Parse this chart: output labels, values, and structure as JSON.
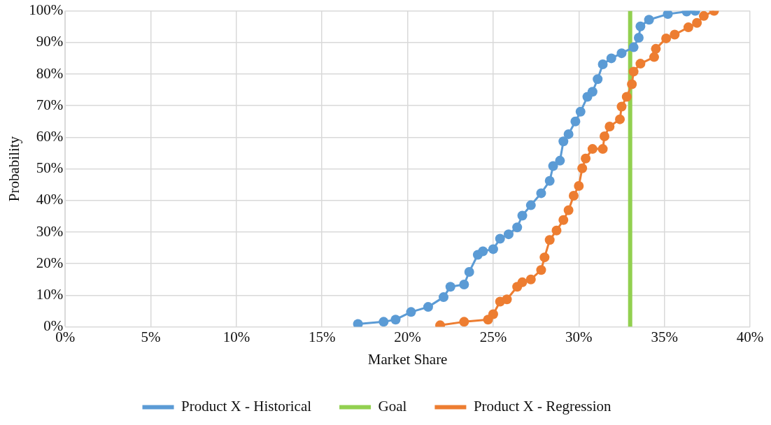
{
  "chart_data": {
    "type": "line",
    "xlabel": "Market Share",
    "ylabel": "Probability",
    "xlim": [
      0,
      40
    ],
    "xticks": [
      {
        "value": 0,
        "label": "0%"
      },
      {
        "value": 5,
        "label": "5%"
      },
      {
        "value": 10,
        "label": "10%"
      },
      {
        "value": 15,
        "label": "15%"
      },
      {
        "value": 20,
        "label": "20%"
      },
      {
        "value": 25,
        "label": "25%"
      },
      {
        "value": 30,
        "label": "30%"
      },
      {
        "value": 35,
        "label": "35%"
      },
      {
        "value": 40,
        "label": "40%"
      }
    ],
    "ylim": [
      0,
      100
    ],
    "yticks": [
      {
        "value": 0,
        "label": "0%"
      },
      {
        "value": 10,
        "label": "10%"
      },
      {
        "value": 20,
        "label": "20%"
      },
      {
        "value": 30,
        "label": "30%"
      },
      {
        "value": 40,
        "label": "40%"
      },
      {
        "value": 50,
        "label": "50%"
      },
      {
        "value": 60,
        "label": "60%"
      },
      {
        "value": 70,
        "label": "70%"
      },
      {
        "value": 80,
        "label": "80%"
      },
      {
        "value": 90,
        "label": "90%"
      },
      {
        "value": 100,
        "label": "100%"
      }
    ],
    "grid": true,
    "legend": "bottom",
    "marker": "circle",
    "series": [
      {
        "name": "Product X - Historical",
        "color": "#5b9bd5",
        "x": [
          17.1,
          18.6,
          19.3,
          20.2,
          21.2,
          22.1,
          22.5,
          23.3,
          23.6,
          24.1,
          24.4,
          25.0,
          25.4,
          25.9,
          26.4,
          26.7,
          27.2,
          27.8,
          28.3,
          28.5,
          28.9,
          29.1,
          29.4,
          29.8,
          30.1,
          30.5,
          30.8,
          31.1,
          31.4,
          31.9,
          32.5,
          33.2,
          33.5,
          33.6,
          34.1,
          35.2,
          36.3,
          36.8
        ],
        "values": [
          0.9,
          1.6,
          2.3,
          4.7,
          6.3,
          9.4,
          12.7,
          13.4,
          17.4,
          22.8,
          23.9,
          24.6,
          27.9,
          29.3,
          31.5,
          35.2,
          38.5,
          42.3,
          46.2,
          50.9,
          52.6,
          58.7,
          61,
          65,
          68.1,
          72.8,
          74.4,
          78.4,
          83.1,
          85,
          86.6,
          88.5,
          91.5,
          95.1,
          97.2,
          99,
          99.8,
          100
        ]
      },
      {
        "name": "Goal",
        "color": "#92d050",
        "marker": "none",
        "x": [
          33,
          33
        ],
        "values": [
          0,
          100
        ]
      },
      {
        "name": "Product X - Regression",
        "color": "#ed7d31",
        "x": [
          21.9,
          23.3,
          24.7,
          25.0,
          25.4,
          25.8,
          26.4,
          26.7,
          27.2,
          27.8,
          28.0,
          28.3,
          28.7,
          29.1,
          29.4,
          29.7,
          30.0,
          30.2,
          30.4,
          30.8,
          31.4,
          31.5,
          31.8,
          32.4,
          32.5,
          32.8,
          33.1,
          33.2,
          33.6,
          34.4,
          34.5,
          35.1,
          35.6,
          36.4,
          36.9,
          37.3,
          37.9
        ],
        "values": [
          0.5,
          1.6,
          2.3,
          4,
          8,
          8.7,
          12.7,
          14.1,
          15,
          18,
          22,
          27.5,
          30.5,
          33.8,
          36.9,
          41.5,
          44.6,
          50.2,
          53.3,
          56.3,
          56.3,
          60.3,
          63.4,
          65.7,
          69.7,
          72.8,
          76.8,
          80.8,
          83.3,
          85.4,
          88,
          91.3,
          92.5,
          94.8,
          96.2,
          98.4,
          100
        ]
      }
    ]
  }
}
